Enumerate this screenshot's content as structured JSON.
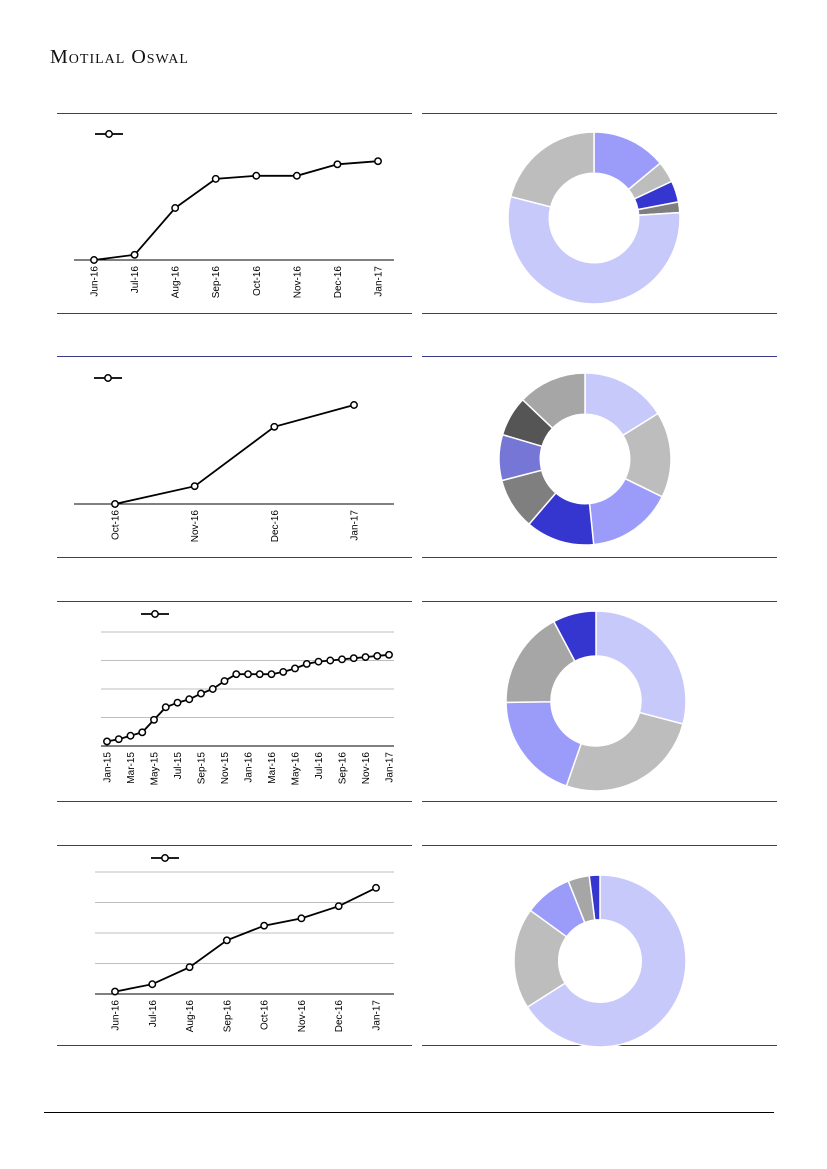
{
  "header": {
    "brand": "Motilal Oswal"
  },
  "colors": {
    "rule": "#3a3a8c",
    "line": "#000000",
    "grid": "#bfbfbf",
    "palette": [
      "#c8c9fb",
      "#bdbdbd",
      "#9b9cfa",
      "#3535cf",
      "#7f7f7f",
      "#7676d6",
      "#555555",
      "#a6a6a6"
    ]
  },
  "chart_data": [
    {
      "id": "line1",
      "type": "line",
      "categories": [
        "Jun-16",
        "Jul-16",
        "Aug-16",
        "Sep-16",
        "Oct-16",
        "Nov-16",
        "Dec-16",
        "Jan-17"
      ],
      "values": [
        0,
        5,
        50,
        78,
        81,
        81,
        92,
        95
      ],
      "ylim": [
        0,
        100
      ],
      "grid": false,
      "legend": "top-left",
      "title": "",
      "xlabel": "",
      "ylabel": ""
    },
    {
      "id": "donut1",
      "type": "pie",
      "values": [
        14,
        4,
        4,
        2,
        55,
        21
      ],
      "color_index": [
        2,
        1,
        3,
        4,
        0,
        1
      ],
      "hole": 0.52
    },
    {
      "id": "line2",
      "type": "line",
      "categories": [
        "Oct-16",
        "Nov-16",
        "Dec-16",
        "Jan-17"
      ],
      "values": [
        0,
        18,
        78,
        100
      ],
      "ylim": [
        0,
        100
      ],
      "grid": false,
      "legend": "top-left",
      "title": "",
      "xlabel": "",
      "ylabel": ""
    },
    {
      "id": "donut2",
      "type": "pie",
      "values": [
        15,
        15,
        15,
        12,
        9,
        8,
        7,
        12
      ],
      "color_index": [
        0,
        1,
        2,
        3,
        4,
        5,
        6,
        7
      ],
      "hole": 0.52
    },
    {
      "id": "line3",
      "type": "line",
      "categories": [
        "Jan-15",
        "Mar-15",
        "May-15",
        "Jul-15",
        "Sep-15",
        "Nov-15",
        "Jan-16",
        "Mar-16",
        "May-16",
        "Jul-16",
        "Sep-16",
        "Nov-16",
        "Jan-17"
      ],
      "x": [
        "Jan-15",
        "Feb-15",
        "Mar-15",
        "Apr-15",
        "May-15",
        "Jun-15",
        "Jul-15",
        "Aug-15",
        "Sep-15",
        "Oct-15",
        "Nov-15",
        "Dec-15",
        "Jan-16",
        "Feb-16",
        "Mar-16",
        "Apr-16",
        "May-16",
        "Jun-16",
        "Jul-16",
        "Aug-16",
        "Sep-16",
        "Oct-16",
        "Nov-16",
        "Dec-16",
        "Jan-17"
      ],
      "values": [
        4,
        6,
        9,
        12,
        23,
        34,
        38,
        41,
        46,
        50,
        57,
        63,
        63,
        63,
        63,
        65,
        68,
        72,
        74,
        75,
        76,
        77,
        78,
        79,
        80
      ],
      "ylim": [
        0,
        100
      ],
      "grid": true,
      "legend": "top-left",
      "title": "",
      "xlabel": "",
      "ylabel": ""
    },
    {
      "id": "donut3",
      "type": "pie",
      "values": [
        30,
        27,
        20,
        18,
        8
      ],
      "color_index": [
        0,
        1,
        2,
        7,
        3
      ],
      "hole": 0.5
    },
    {
      "id": "line4",
      "type": "line",
      "categories": [
        "Jun-16",
        "Jul-16",
        "Aug-16",
        "Sep-16",
        "Oct-16",
        "Nov-16",
        "Dec-16",
        "Jan-17"
      ],
      "values": [
        2,
        8,
        22,
        44,
        56,
        62,
        72,
        87
      ],
      "ylim": [
        0,
        100
      ],
      "grid": true,
      "legend": "top-left",
      "title": "",
      "xlabel": "",
      "ylabel": ""
    },
    {
      "id": "donut4",
      "type": "pie",
      "values": [
        66,
        19,
        9,
        4,
        2
      ],
      "color_index": [
        0,
        1,
        2,
        7,
        3
      ],
      "hole": 0.48
    }
  ]
}
